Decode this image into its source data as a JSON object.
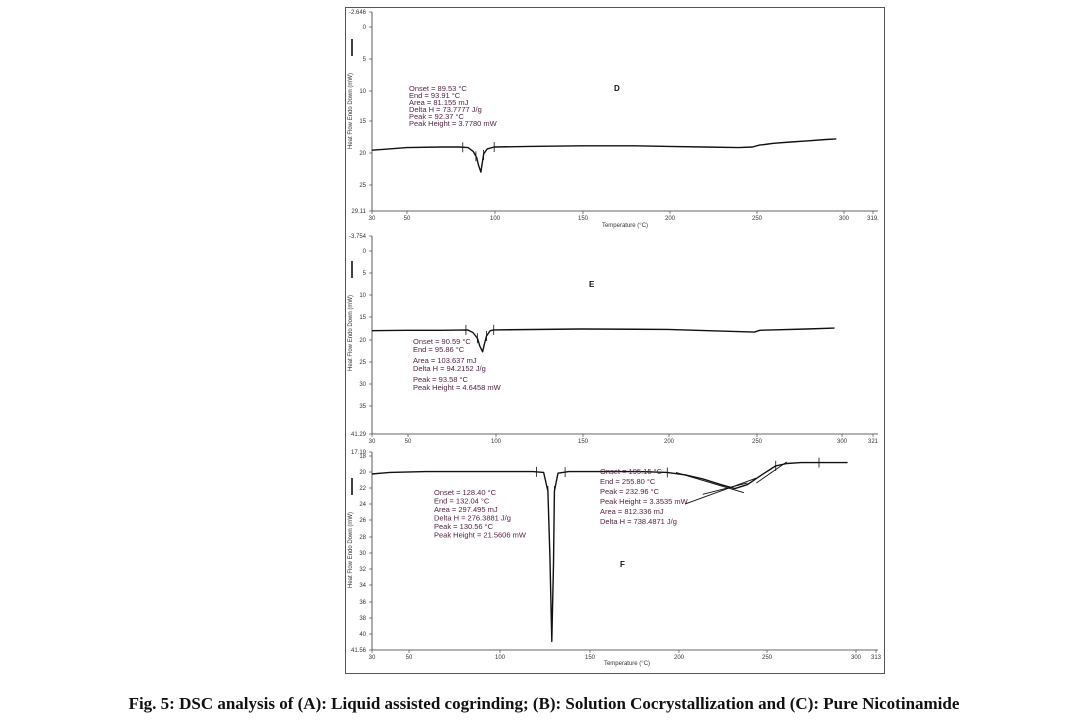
{
  "caption": "Fig. 5: DSC analysis of (A): Liquid assisted cogrinding; (B): Solution Cocrystallization and (C): Pure Nicotinamide",
  "chart_data": [
    {
      "type": "line",
      "panel_label": "D",
      "xlabel": "Temperature (°C)",
      "ylabel": "Heat Flow Endo Down (mW)",
      "xlim": [
        30,
        319.9
      ],
      "ylim": [
        -2.646,
        29.11
      ],
      "y_inverted": true,
      "x_ticks": [
        "30",
        "50",
        "100",
        "150",
        "200",
        "250",
        "300",
        "319."
      ],
      "y_ticks": [
        "-2.646",
        "0",
        "5",
        "10",
        "15",
        "20",
        "25",
        "29.11"
      ],
      "series": [
        {
          "x": [
            30,
            50,
            70,
            80,
            85,
            88,
            90,
            91,
            92.37,
            93,
            94,
            96,
            100,
            120,
            150,
            180,
            200,
            220,
            240,
            248,
            252,
            255,
            260,
            270,
            280,
            290,
            296
          ],
          "y": [
            19.4,
            19.0,
            18.9,
            18.9,
            19.0,
            19.6,
            20.6,
            21.8,
            22.9,
            21.7,
            20.0,
            19.2,
            18.9,
            18.8,
            18.7,
            18.7,
            18.8,
            18.9,
            19.0,
            18.9,
            18.6,
            18.5,
            18.3,
            18.1,
            17.9,
            17.7,
            17.6
          ]
        }
      ],
      "annotations": [
        "Onset = 89.53 °C",
        "End = 93.91 °C",
        "Area = 81.155 mJ",
        "Delta H = 73.7777 J/g",
        "Peak = 92.37 °C",
        "Peak Height = 3.7780 mW"
      ]
    },
    {
      "type": "line",
      "panel_label": "E",
      "xlabel": "",
      "ylabel": "Heat Flow Endo Down (mW)",
      "xlim": [
        30,
        321
      ],
      "ylim": [
        -3.754,
        41.29
      ],
      "y_inverted": true,
      "x_ticks": [
        "30",
        "50",
        "100",
        "150",
        "200",
        "250",
        "300",
        "321"
      ],
      "y_ticks": [
        "-3.754",
        "0",
        "5",
        "10",
        "15",
        "20",
        "25",
        "30",
        "35",
        "41.29"
      ],
      "series": [
        {
          "x": [
            30,
            50,
            70,
            85,
            88,
            90.59,
            92,
            93.58,
            94.5,
            95.86,
            98,
            100,
            150,
            200,
            240,
            250,
            253,
            260,
            280,
            296
          ],
          "y": [
            17.8,
            17.7,
            17.7,
            17.6,
            18.2,
            19.5,
            21.3,
            22.6,
            21.0,
            19.0,
            17.8,
            17.6,
            17.4,
            17.5,
            18.0,
            18.1,
            17.7,
            17.6,
            17.4,
            17.2
          ]
        }
      ],
      "annotations": [
        "Onset = 90.59 °C",
        "End = 95.86 °C",
        "Area = 103.637 mJ",
        "Delta H = 94.2152 J/g",
        "Peak = 93.58 °C",
        "Peak Height = 4.6458 mW"
      ]
    },
    {
      "type": "line",
      "panel_label": "F",
      "xlabel": "Temperature (°C)",
      "ylabel": "Heat Flow Endo Down (mW)",
      "xlim": [
        30,
        313
      ],
      "ylim": [
        17.19,
        41.56
      ],
      "y_inverted": true,
      "x_ticks": [
        "30",
        "50",
        "100",
        "150",
        "200",
        "250",
        "300",
        "313"
      ],
      "y_ticks": [
        "17.19",
        "18",
        "20",
        "22",
        "24",
        "26",
        "28",
        "30",
        "32",
        "34",
        "36",
        "38",
        "40",
        "41.56"
      ],
      "series": [
        {
          "x": [
            30,
            40,
            60,
            100,
            120,
            126,
            128.4,
            129.5,
            130.56,
            131.5,
            132.04,
            134,
            140,
            160,
            180,
            195,
            205,
            215,
            225,
            232.96,
            240,
            248,
            255.8,
            262,
            270,
            290,
            296
          ],
          "y": [
            19.9,
            19.7,
            19.6,
            19.6,
            19.6,
            19.7,
            22.0,
            30.0,
            40.5,
            31.0,
            22.0,
            19.8,
            19.6,
            19.6,
            19.6,
            19.7,
            20.0,
            20.5,
            21.2,
            21.7,
            21.2,
            20.0,
            18.9,
            18.6,
            18.5,
            18.5,
            18.5
          ]
        }
      ],
      "annotations_left": [
        "Onset = 128.40 °C",
        "End = 132.04 °C",
        "Area = 297.495 mJ",
        "Delta H = 276.3881 J/g",
        "Peak = 130.56 °C",
        "Peak Height = 21.5606 mW"
      ],
      "annotations_right": [
        "Onset = 195.15 °C",
        "End = 255.80 °C",
        "Peak = 232.96 °C",
        "Peak Height = 3.3535 mW",
        "Area = 812.336 mJ",
        "Delta H = 738.4871 J/g"
      ]
    }
  ]
}
